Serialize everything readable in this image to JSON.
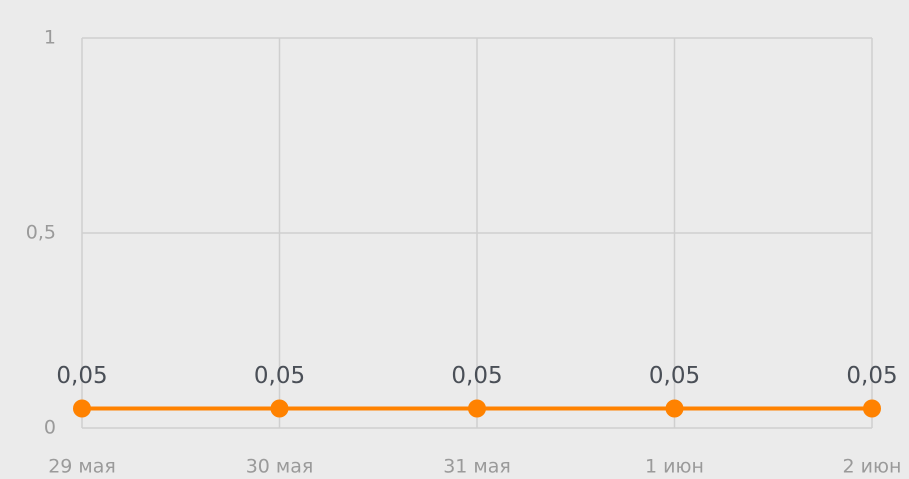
{
  "chart_data": {
    "type": "line",
    "categories": [
      "29 мая",
      "30 мая",
      "31 мая",
      "1 июн",
      "2 июн"
    ],
    "values": [
      0.05,
      0.05,
      0.05,
      0.05,
      0.05
    ],
    "value_labels": [
      "0,05",
      "0,05",
      "0,05",
      "0,05",
      "0,05"
    ],
    "color": "#ff8200",
    "ylim": [
      0,
      1
    ],
    "yticks": [
      0,
      {
        "value": 0.5,
        "label": "0,5"
      },
      1
    ],
    "grid": true
  }
}
